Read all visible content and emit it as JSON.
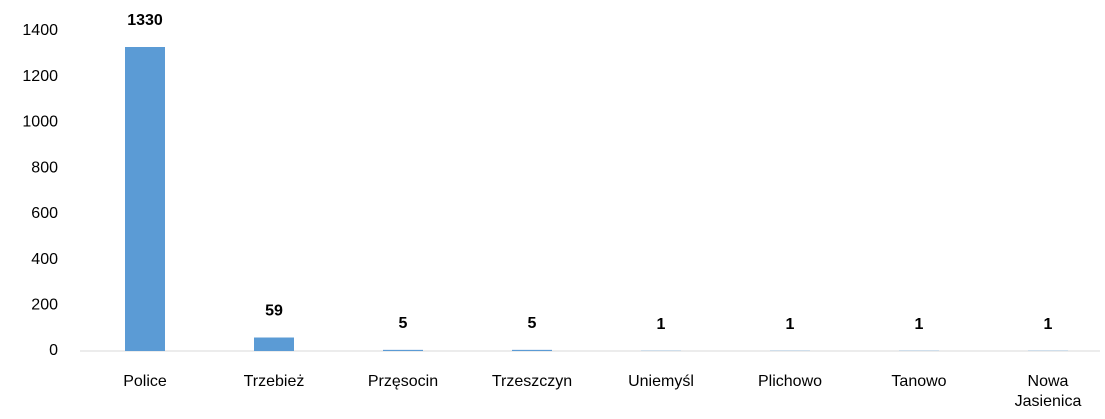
{
  "chart_data": {
    "type": "bar",
    "categories": [
      "Police",
      "Trzebież",
      "Przęsocin",
      "Trzeszczyn",
      "Uniemyśl",
      "Plichowo",
      "Tanowo",
      "Nowa Jasienica"
    ],
    "values": [
      1330,
      59,
      5,
      5,
      1,
      1,
      1,
      1
    ],
    "color": "#5b9bd5",
    "ylim": [
      0,
      1400
    ],
    "yticks": [
      0,
      200,
      400,
      600,
      800,
      1000,
      1200,
      1400
    ],
    "grid": false
  }
}
